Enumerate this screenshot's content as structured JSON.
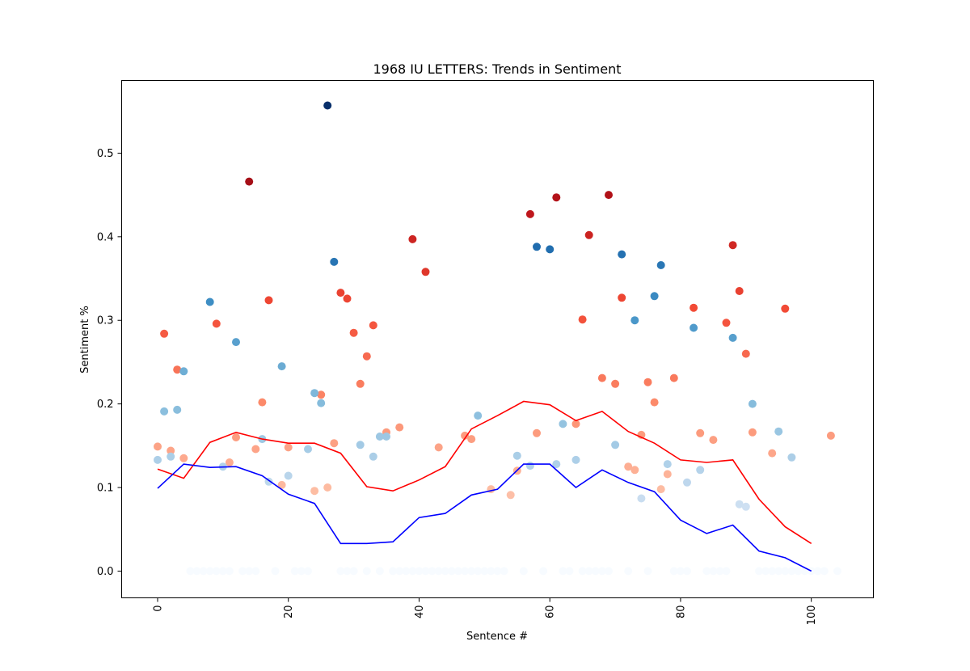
{
  "chart_data": {
    "type": "scatter",
    "title": "1968 IU LETTERS: Trends in Sentiment",
    "xlabel": "Sentence #",
    "ylabel": "Sentiment %",
    "xlim": [
      -5.5,
      109.5
    ],
    "ylim": [
      -0.032,
      0.587
    ],
    "xticks": [
      0,
      20,
      40,
      60,
      80,
      100
    ],
    "yticks": [
      0.0,
      0.1,
      0.2,
      0.3,
      0.4,
      0.5
    ],
    "grid": false,
    "colors": {
      "positive_line": "#ff0000",
      "negative_line": "#0000ff",
      "positive_scale": [
        "#fff5f0",
        "#fdbea5",
        "#fc8a6a",
        "#f24a35",
        "#bc141a",
        "#67000d"
      ],
      "negative_scale": [
        "#f7fbff",
        "#c6dbef",
        "#85bcdc",
        "#4191c6",
        "#0b559f",
        "#08306b"
      ]
    },
    "series": [
      {
        "type": "scatter",
        "role": "positive",
        "x": [
          0,
          1,
          2,
          3,
          4,
          9,
          11,
          12,
          14,
          15,
          16,
          17,
          19,
          20,
          24,
          25,
          26,
          27,
          28,
          29,
          30,
          31,
          32,
          33,
          35,
          37,
          39,
          41,
          43,
          47,
          48,
          51,
          54,
          55,
          57,
          58,
          61,
          64,
          65,
          66,
          68,
          69,
          70,
          71,
          72,
          73,
          74,
          75,
          76,
          77,
          78,
          79,
          82,
          83,
          85,
          87,
          88,
          89,
          90,
          91,
          94,
          96,
          103
        ],
        "y": [
          0.149,
          0.284,
          0.144,
          0.241,
          0.135,
          0.296,
          0.13,
          0.16,
          0.466,
          0.146,
          0.202,
          0.324,
          0.103,
          0.148,
          0.096,
          0.211,
          0.1,
          0.153,
          0.333,
          0.326,
          0.285,
          0.224,
          0.257,
          0.294,
          0.166,
          0.172,
          0.397,
          0.358,
          0.148,
          0.162,
          0.158,
          0.098,
          0.091,
          0.12,
          0.427,
          0.165,
          0.447,
          0.176,
          0.301,
          0.402,
          0.231,
          0.45,
          0.224,
          0.327,
          0.125,
          0.121,
          0.163,
          0.226,
          0.202,
          0.098,
          0.116,
          0.231,
          0.315,
          0.165,
          0.157,
          0.297,
          0.39,
          0.335,
          0.26,
          0.166,
          0.141,
          0.314,
          0.162
        ]
      },
      {
        "type": "scatter",
        "role": "negative",
        "x": [
          0,
          1,
          2,
          3,
          4,
          8,
          10,
          12,
          16,
          17,
          19,
          20,
          23,
          24,
          25,
          26,
          27,
          31,
          33,
          34,
          35,
          49,
          55,
          57,
          58,
          60,
          61,
          62,
          64,
          70,
          71,
          73,
          74,
          76,
          77,
          78,
          81,
          82,
          83,
          88,
          89,
          90,
          91,
          95,
          97
        ],
        "y": [
          0.133,
          0.191,
          0.137,
          0.193,
          0.239,
          0.322,
          0.125,
          0.274,
          0.158,
          0.107,
          0.245,
          0.114,
          0.146,
          0.213,
          0.201,
          0.557,
          0.37,
          0.151,
          0.137,
          0.161,
          0.161,
          0.186,
          0.138,
          0.126,
          0.388,
          0.385,
          0.128,
          0.176,
          0.133,
          0.151,
          0.379,
          0.3,
          0.087,
          0.329,
          0.366,
          0.128,
          0.106,
          0.291,
          0.121,
          0.279,
          0.08,
          0.077,
          0.2,
          0.167,
          0.136
        ]
      },
      {
        "type": "scatter",
        "role": "zero",
        "x": [
          5,
          6,
          7,
          8,
          9,
          10,
          11,
          13,
          14,
          15,
          18,
          21,
          22,
          23,
          28,
          29,
          30,
          32,
          34,
          36,
          37,
          38,
          39,
          40,
          41,
          42,
          43,
          44,
          45,
          46,
          47,
          48,
          49,
          50,
          51,
          52,
          53,
          56,
          59,
          62,
          63,
          65,
          66,
          67,
          68,
          69,
          72,
          75,
          79,
          80,
          81,
          84,
          85,
          86,
          87,
          92,
          93,
          94,
          95,
          96,
          97,
          98,
          99,
          100,
          101,
          102,
          104
        ],
        "y": [
          0,
          0,
          0,
          0,
          0,
          0,
          0,
          0,
          0,
          0,
          0,
          0,
          0,
          0,
          0,
          0,
          0,
          0,
          0,
          0,
          0,
          0,
          0,
          0,
          0,
          0,
          0,
          0,
          0,
          0,
          0,
          0,
          0,
          0,
          0,
          0,
          0,
          0,
          0,
          0,
          0,
          0,
          0,
          0,
          0,
          0,
          0,
          0,
          0,
          0,
          0,
          0,
          0,
          0,
          0,
          0,
          0,
          0,
          0,
          0,
          0,
          0,
          0,
          0,
          0,
          0,
          0
        ]
      },
      {
        "type": "line",
        "role": "positive-trend",
        "x": [
          0,
          4,
          8,
          12,
          16,
          20,
          24,
          28,
          32,
          36,
          40,
          44,
          48,
          52,
          56,
          60,
          64,
          68,
          72,
          76,
          80,
          84,
          88,
          92,
          96,
          100
        ],
        "y": [
          0.122,
          0.111,
          0.154,
          0.166,
          0.158,
          0.153,
          0.153,
          0.141,
          0.101,
          0.096,
          0.109,
          0.125,
          0.17,
          0.186,
          0.203,
          0.199,
          0.18,
          0.191,
          0.167,
          0.153,
          0.133,
          0.13,
          0.133,
          0.086,
          0.053,
          0.033
        ]
      },
      {
        "type": "line",
        "role": "negative-trend",
        "x": [
          0,
          4,
          8,
          12,
          16,
          20,
          24,
          28,
          32,
          36,
          40,
          44,
          48,
          52,
          56,
          60,
          64,
          68,
          72,
          76,
          80,
          84,
          88,
          92,
          96,
          100
        ],
        "y": [
          0.099,
          0.128,
          0.124,
          0.125,
          0.114,
          0.092,
          0.081,
          0.033,
          0.033,
          0.035,
          0.064,
          0.069,
          0.091,
          0.098,
          0.128,
          0.128,
          0.1,
          0.121,
          0.106,
          0.095,
          0.061,
          0.045,
          0.055,
          0.024,
          0.016,
          0.0
        ]
      }
    ]
  }
}
